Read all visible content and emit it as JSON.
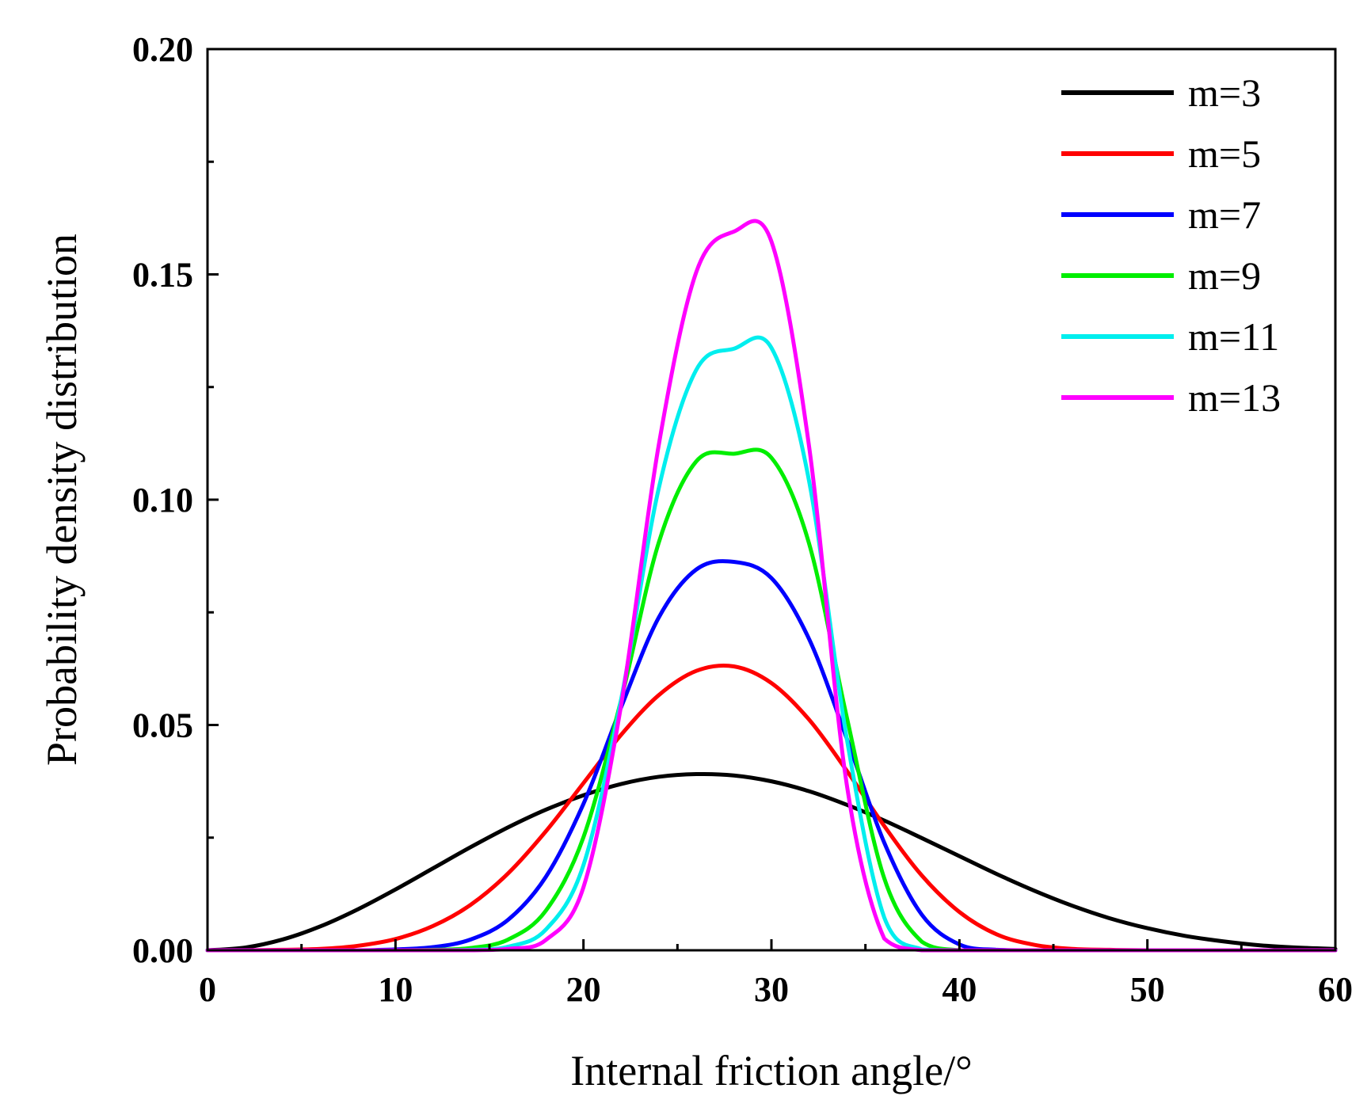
{
  "chart_data": {
    "type": "line",
    "title": "",
    "xlabel": "Internal friction angle/°",
    "ylabel": "Probability density distribution",
    "xlim": [
      0,
      60
    ],
    "ylim": [
      0,
      0.2
    ],
    "xticks": [
      0,
      10,
      20,
      30,
      40,
      50,
      60
    ],
    "xtick_labels": [
      "0",
      "10",
      "20",
      "30",
      "40",
      "50",
      "60"
    ],
    "yticks": [
      0,
      0.05,
      0.1,
      0.15,
      0.2
    ],
    "ytick_labels": [
      "0.00",
      "0.05",
      "0.10",
      "0.15",
      "0.20"
    ],
    "grid": false,
    "legend_position": "top-right",
    "x": [
      0,
      2,
      4,
      6,
      8,
      10,
      12,
      14,
      16,
      18,
      20,
      22,
      24,
      26,
      28,
      30,
      32,
      34,
      36,
      38,
      40,
      42,
      44,
      46,
      48,
      50,
      52,
      54,
      56,
      58,
      60
    ],
    "series": [
      {
        "name": "m=3",
        "color": "#000000",
        "values": [
          0.0,
          0.0006,
          0.0024,
          0.0053,
          0.0091,
          0.0135,
          0.0182,
          0.0229,
          0.0273,
          0.0312,
          0.0344,
          0.0369,
          0.0385,
          0.0391,
          0.0388,
          0.0375,
          0.0353,
          0.0323,
          0.0288,
          0.0249,
          0.0209,
          0.0169,
          0.0132,
          0.0099,
          0.0071,
          0.0049,
          0.0032,
          0.002,
          0.0011,
          0.0006,
          0.0003
        ]
      },
      {
        "name": "m=5",
        "color": "#ff0000",
        "values": [
          0.0,
          0.0,
          0.0001,
          0.0003,
          0.001,
          0.0025,
          0.0054,
          0.0101,
          0.0171,
          0.0264,
          0.0371,
          0.0478,
          0.0566,
          0.062,
          0.063,
          0.0593,
          0.0512,
          0.0399,
          0.0276,
          0.0166,
          0.0085,
          0.0035,
          0.0012,
          0.0003,
          0.0001,
          0.0,
          0.0,
          0.0,
          0.0,
          0.0,
          0.0
        ]
      },
      {
        "name": "m=7",
        "color": "#0000ff",
        "values": [
          0.0,
          0.0,
          0.0,
          0.0,
          0.0,
          0.0002,
          0.0007,
          0.0024,
          0.0068,
          0.0163,
          0.0325,
          0.0539,
          0.0738,
          0.0845,
          0.0862,
          0.0826,
          0.0691,
          0.0471,
          0.0239,
          0.0079,
          0.0013,
          0.0001,
          0.0,
          0.0,
          0.0,
          0.0,
          0.0,
          0.0,
          0.0,
          0.0,
          0.0
        ]
      },
      {
        "name": "m=9",
        "color": "#00ee00",
        "values": [
          0.0,
          0.0,
          0.0,
          0.0,
          0.0,
          0.0,
          0.0001,
          0.0005,
          0.0024,
          0.0088,
          0.0251,
          0.0555,
          0.0904,
          0.1085,
          0.1102,
          0.1093,
          0.0903,
          0.0519,
          0.016,
          0.0019,
          0.0,
          0.0,
          0.0,
          0.0,
          0.0,
          0.0,
          0.0,
          0.0,
          0.0,
          0.0,
          0.0
        ]
      },
      {
        "name": "m=11",
        "color": "#00eeee",
        "values": [
          0.0,
          0.0,
          0.0,
          0.0,
          0.0,
          0.0,
          0.0,
          0.0001,
          0.0008,
          0.0046,
          0.0189,
          0.0556,
          0.1024,
          0.1288,
          0.1335,
          0.1337,
          0.1042,
          0.0472,
          0.0073,
          0.0002,
          0.0,
          0.0,
          0.0,
          0.0,
          0.0,
          0.0,
          0.0,
          0.0,
          0.0,
          0.0,
          0.0
        ]
      },
      {
        "name": "m=13",
        "color": "#ff00ff",
        "values": [
          0.0,
          0.0,
          0.0,
          0.0,
          0.0,
          0.0,
          0.0,
          0.0,
          0.0003,
          0.0023,
          0.014,
          0.0543,
          0.112,
          0.1505,
          0.1595,
          0.1573,
          0.1119,
          0.037,
          0.0026,
          0.0,
          0.0,
          0.0,
          0.0,
          0.0,
          0.0,
          0.0,
          0.0,
          0.0,
          0.0,
          0.0,
          0.0
        ]
      }
    ]
  }
}
